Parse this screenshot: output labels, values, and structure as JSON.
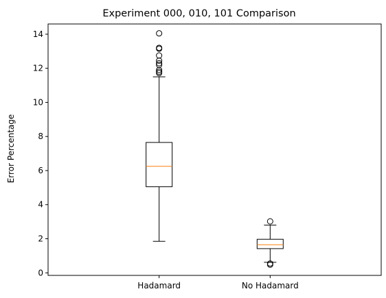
{
  "chart_data": {
    "type": "box",
    "title": "Experiment 000, 010, 101 Comparison",
    "xlabel": "",
    "ylabel": "Error Percentage",
    "ylim": [
      -0.15,
      14.6
    ],
    "yticks": [
      0,
      2,
      4,
      6,
      8,
      10,
      12,
      14
    ],
    "grid": false,
    "categories": [
      "Hadamard",
      "No Hadamard"
    ],
    "boxes": [
      {
        "name": "Hadamard",
        "whisker_low": 1.85,
        "q1": 5.05,
        "median": 6.25,
        "q3": 7.65,
        "whisker_high": 11.5,
        "outliers": [
          11.72,
          11.8,
          11.9,
          12.2,
          12.3,
          12.45,
          12.75,
          13.15,
          13.2,
          14.05
        ]
      },
      {
        "name": "No Hadamard",
        "whisker_low": 0.62,
        "q1": 1.42,
        "median": 1.65,
        "q3": 1.97,
        "whisker_high": 2.8,
        "outliers": [
          0.48,
          0.55,
          3.02
        ]
      }
    ],
    "colors": {
      "box": "#000000",
      "median": "#ff7f0e",
      "outlier_edge": "#000000"
    }
  }
}
